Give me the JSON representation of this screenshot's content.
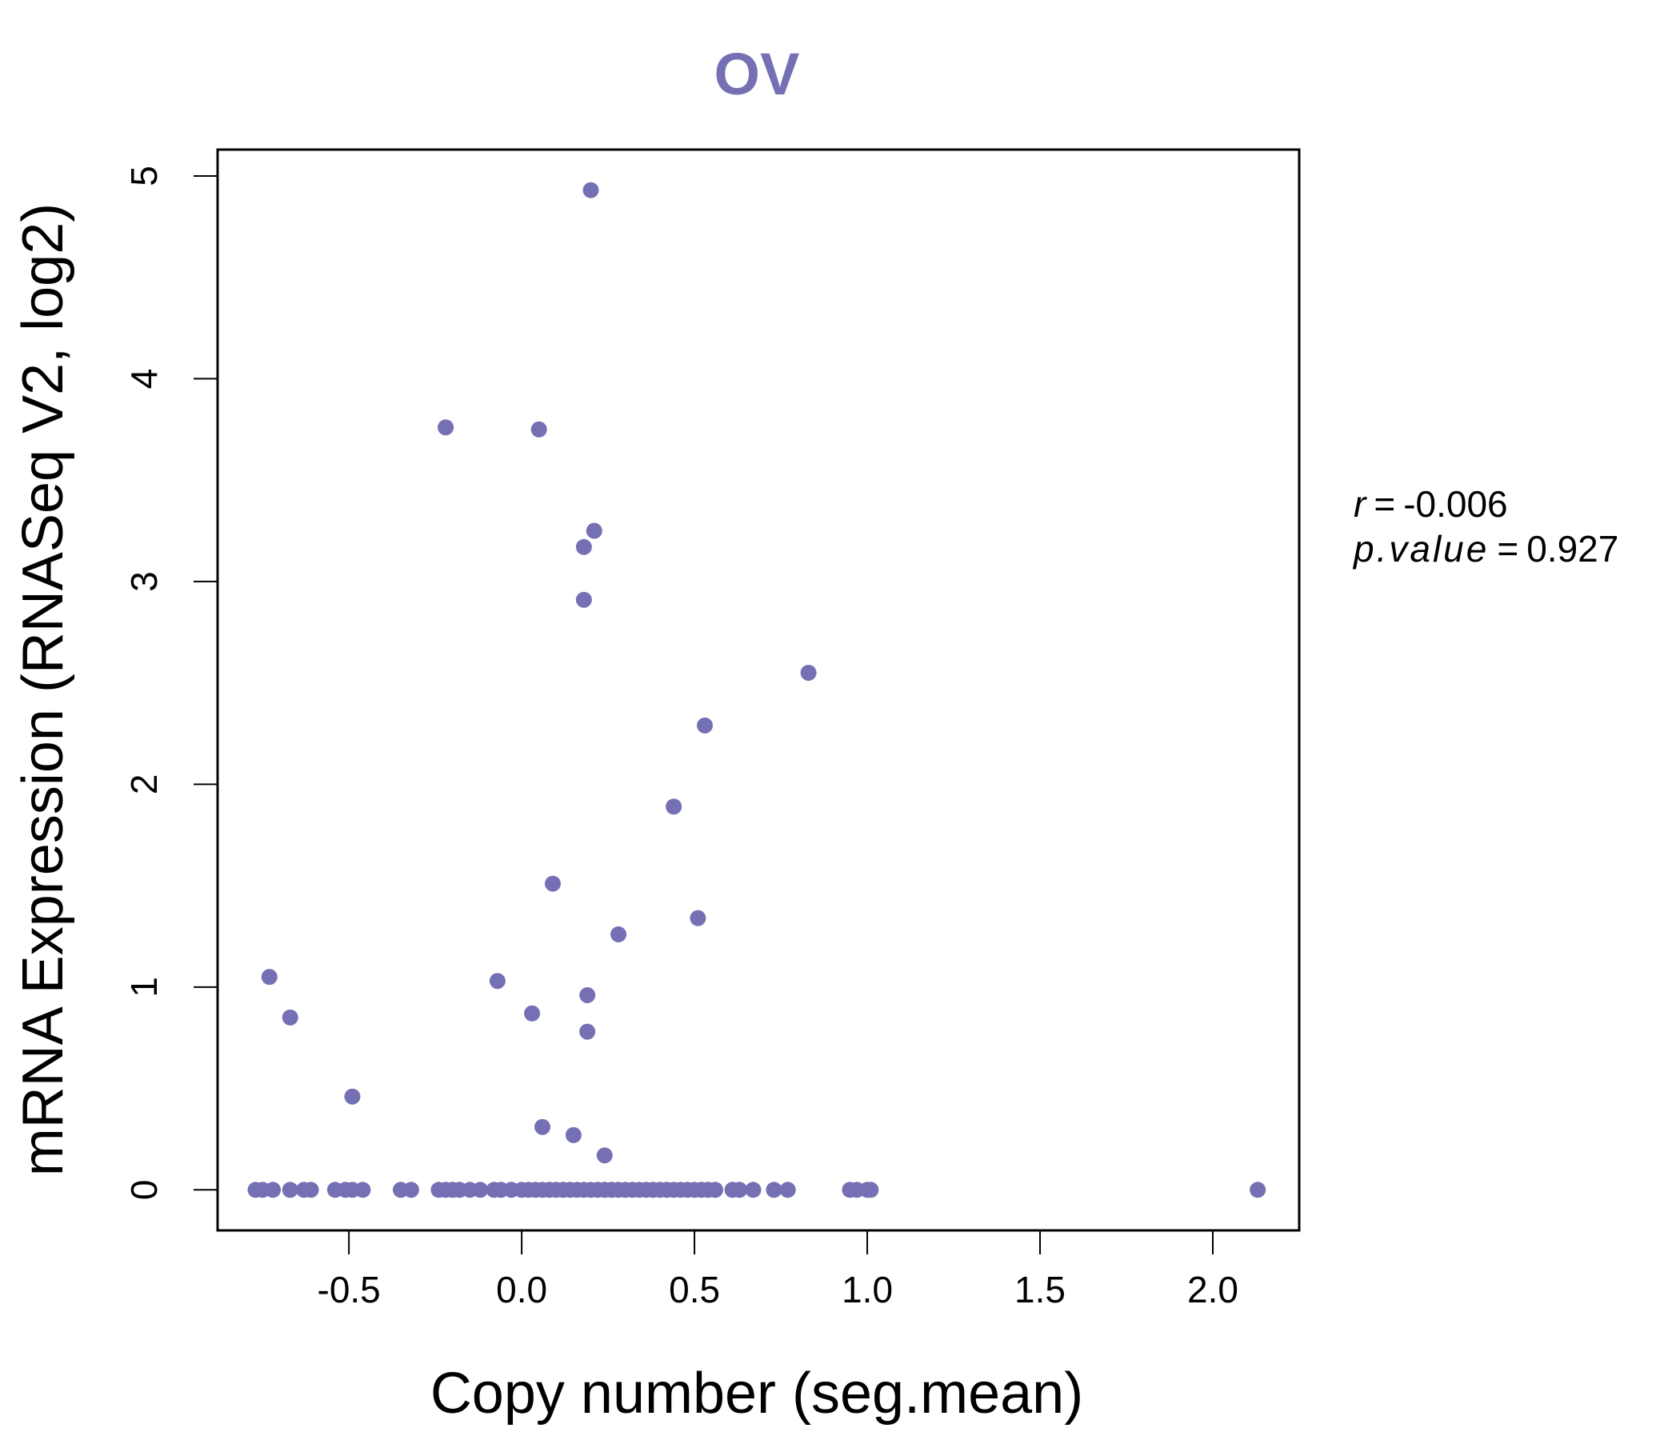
{
  "colors": {
    "point": "#7570B3",
    "title": "#7570B3",
    "axis": "#000000",
    "background": "#ffffff"
  },
  "chart_data": {
    "type": "scatter",
    "title": "OV",
    "xlabel": "Copy number (seg.mean)",
    "ylabel": "mRNA Expression (RNASeq V2, log2)",
    "xlim": [
      -0.88,
      2.25
    ],
    "ylim": [
      -0.2,
      5.13
    ],
    "xticks": [
      -0.5,
      0.0,
      0.5,
      1.0,
      1.5,
      2.0
    ],
    "xtick_labels": [
      "-0.5",
      "0.0",
      "0.5",
      "1.0",
      "1.5",
      "2.0"
    ],
    "yticks": [
      0,
      1,
      2,
      3,
      4,
      5
    ],
    "ytick_labels": [
      "0",
      "1",
      "2",
      "3",
      "4",
      "5"
    ],
    "annotation": {
      "r_label": "r",
      "r_value": "-0.006",
      "p_label": "p.value",
      "p_value": "0.927"
    },
    "points": [
      {
        "x": 0.2,
        "y": 4.93
      },
      {
        "x": -0.22,
        "y": 3.76
      },
      {
        "x": 0.05,
        "y": 3.75
      },
      {
        "x": 0.21,
        "y": 3.25
      },
      {
        "x": 0.18,
        "y": 3.17
      },
      {
        "x": 0.18,
        "y": 2.91
      },
      {
        "x": 0.83,
        "y": 2.55
      },
      {
        "x": 0.53,
        "y": 2.29
      },
      {
        "x": 0.44,
        "y": 1.89
      },
      {
        "x": 0.09,
        "y": 1.51
      },
      {
        "x": 0.51,
        "y": 1.34
      },
      {
        "x": 0.28,
        "y": 1.26
      },
      {
        "x": -0.73,
        "y": 1.05
      },
      {
        "x": -0.07,
        "y": 1.03
      },
      {
        "x": 0.19,
        "y": 0.96
      },
      {
        "x": -0.67,
        "y": 0.85
      },
      {
        "x": 0.03,
        "y": 0.87
      },
      {
        "x": 0.19,
        "y": 0.78
      },
      {
        "x": -0.49,
        "y": 0.46
      },
      {
        "x": 0.06,
        "y": 0.31
      },
      {
        "x": 0.15,
        "y": 0.27
      },
      {
        "x": 0.24,
        "y": 0.17
      },
      {
        "x": -0.77,
        "y": 0
      },
      {
        "x": -0.75,
        "y": 0
      },
      {
        "x": -0.72,
        "y": 0
      },
      {
        "x": -0.67,
        "y": 0
      },
      {
        "x": -0.63,
        "y": 0
      },
      {
        "x": -0.61,
        "y": 0
      },
      {
        "x": -0.54,
        "y": 0
      },
      {
        "x": -0.51,
        "y": 0
      },
      {
        "x": -0.49,
        "y": 0
      },
      {
        "x": -0.46,
        "y": 0
      },
      {
        "x": -0.35,
        "y": 0
      },
      {
        "x": -0.32,
        "y": 0
      },
      {
        "x": -0.24,
        "y": 0
      },
      {
        "x": -0.22,
        "y": 0
      },
      {
        "x": -0.2,
        "y": 0
      },
      {
        "x": -0.18,
        "y": 0
      },
      {
        "x": -0.15,
        "y": 0
      },
      {
        "x": -0.12,
        "y": 0
      },
      {
        "x": -0.08,
        "y": 0
      },
      {
        "x": -0.06,
        "y": 0
      },
      {
        "x": -0.03,
        "y": 0
      },
      {
        "x": 0.0,
        "y": 0
      },
      {
        "x": 0.02,
        "y": 0
      },
      {
        "x": 0.04,
        "y": 0
      },
      {
        "x": 0.06,
        "y": 0
      },
      {
        "x": 0.08,
        "y": 0
      },
      {
        "x": 0.1,
        "y": 0
      },
      {
        "x": 0.12,
        "y": 0
      },
      {
        "x": 0.14,
        "y": 0
      },
      {
        "x": 0.16,
        "y": 0
      },
      {
        "x": 0.18,
        "y": 0
      },
      {
        "x": 0.2,
        "y": 0
      },
      {
        "x": 0.22,
        "y": 0
      },
      {
        "x": 0.24,
        "y": 0
      },
      {
        "x": 0.26,
        "y": 0
      },
      {
        "x": 0.28,
        "y": 0
      },
      {
        "x": 0.3,
        "y": 0
      },
      {
        "x": 0.32,
        "y": 0
      },
      {
        "x": 0.34,
        "y": 0
      },
      {
        "x": 0.36,
        "y": 0
      },
      {
        "x": 0.38,
        "y": 0
      },
      {
        "x": 0.4,
        "y": 0
      },
      {
        "x": 0.42,
        "y": 0
      },
      {
        "x": 0.44,
        "y": 0
      },
      {
        "x": 0.46,
        "y": 0
      },
      {
        "x": 0.48,
        "y": 0
      },
      {
        "x": 0.5,
        "y": 0
      },
      {
        "x": 0.52,
        "y": 0
      },
      {
        "x": 0.54,
        "y": 0
      },
      {
        "x": 0.56,
        "y": 0
      },
      {
        "x": 0.61,
        "y": 0
      },
      {
        "x": 0.63,
        "y": 0
      },
      {
        "x": 0.67,
        "y": 0
      },
      {
        "x": 0.73,
        "y": 0
      },
      {
        "x": 0.77,
        "y": 0
      },
      {
        "x": 0.95,
        "y": 0
      },
      {
        "x": 0.97,
        "y": 0
      },
      {
        "x": 1.0,
        "y": 0
      },
      {
        "x": 1.01,
        "y": 0
      },
      {
        "x": 2.13,
        "y": 0
      }
    ]
  }
}
